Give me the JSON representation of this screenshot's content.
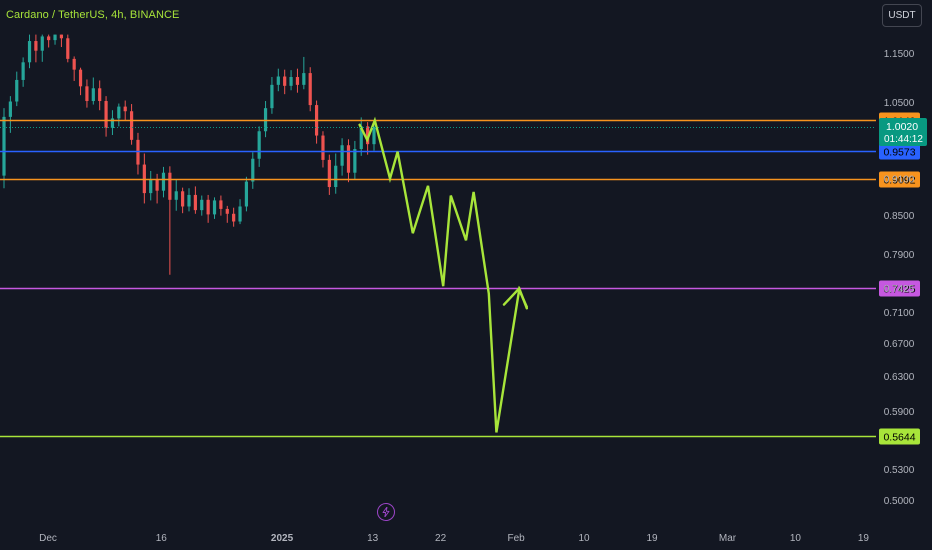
{
  "header": {
    "title": "Cardano / TetherUS, 4h, BINANCE",
    "currency": "USDT"
  },
  "chart_data": {
    "type": "line",
    "title": "Cardano / TetherUS, 4h, BINANCE",
    "symbol": "ADA/USDT",
    "interval": "4h",
    "exchange": "BINANCE",
    "ylim": [
      0.48,
      1.2
    ],
    "grid": false,
    "y_ticks": [
      "1.1500",
      "1.0500",
      "0.9100",
      "0.8500",
      "0.7900",
      "0.7425",
      "0.7100",
      "0.6700",
      "0.6300",
      "0.5900",
      "0.5300",
      "0.5000"
    ],
    "x_ticks": [
      "Dec",
      "16",
      "2025",
      "13",
      "22",
      "Feb",
      "10",
      "19",
      "Mar",
      "10",
      "19"
    ],
    "current_price": {
      "value": "1.0020",
      "countdown": "01:44:12",
      "color": "#089981"
    },
    "horizontal_levels": [
      {
        "value": 1.0149,
        "label": "1.0149",
        "color": "#f7931e"
      },
      {
        "value": 0.9573,
        "label": "0.9573",
        "color": "#2962ff"
      },
      {
        "value": 0.9092,
        "label": "0.9092",
        "color": "#f7931e"
      },
      {
        "value": 0.7425,
        "label": "0.7425",
        "color": "#c658e0"
      },
      {
        "value": 0.5644,
        "label": "0.5644",
        "color": "#a8e53a"
      }
    ],
    "projection": {
      "color": "#a8e53a",
      "path": [
        [
          "Jan 13",
          1.006
        ],
        [
          "Jan 14",
          0.978
        ],
        [
          "Jan 15",
          1.014
        ],
        [
          "Jan 17",
          0.91
        ],
        [
          "Jan 18",
          0.956
        ],
        [
          "Jan 20",
          0.822
        ],
        [
          "Jan 22",
          0.898
        ],
        [
          "Jan 24",
          0.745
        ],
        [
          "Jan 25",
          0.882
        ],
        [
          "Jan 27",
          0.811
        ],
        [
          "Jan 28",
          0.888
        ],
        [
          "Jan 30",
          0.735
        ],
        [
          "Jan 31",
          0.568
        ],
        [
          "Feb 3",
          0.74
        ],
        [
          "Feb 4",
          0.717
        ]
      ],
      "arrow_head": [
        [
          "Feb 1",
          0.72
        ],
        [
          "Feb 3",
          0.742
        ],
        [
          "Feb 4",
          0.715
        ]
      ]
    },
    "candles": [
      [
        0.915,
        1.021,
        0.894,
        1.038
      ],
      [
        1.021,
        1.051,
        0.991,
        1.062
      ],
      [
        1.051,
        1.095,
        1.042,
        1.112
      ],
      [
        1.095,
        1.131,
        1.081,
        1.141
      ],
      [
        1.131,
        1.176,
        1.119,
        1.19
      ],
      [
        1.176,
        1.155,
        1.131,
        1.19
      ],
      [
        1.155,
        1.186,
        1.132,
        1.19
      ],
      [
        1.186,
        1.178,
        1.162,
        1.19
      ],
      [
        1.178,
        1.19,
        1.168,
        1.19
      ],
      [
        1.19,
        1.182,
        1.163,
        1.19
      ],
      [
        1.182,
        1.138,
        1.131,
        1.19
      ],
      [
        1.138,
        1.116,
        1.093,
        1.143
      ],
      [
        1.116,
        1.082,
        1.064,
        1.12
      ],
      [
        1.082,
        1.052,
        1.039,
        1.096
      ],
      [
        1.052,
        1.078,
        1.045,
        1.1
      ],
      [
        1.078,
        1.052,
        1.034,
        1.094
      ],
      [
        1.052,
        1.0,
        0.984,
        1.062
      ],
      [
        1.0,
        1.018,
        0.987,
        1.034
      ],
      [
        1.018,
        1.041,
        1.003,
        1.047
      ],
      [
        1.041,
        1.032,
        1.014,
        1.053
      ],
      [
        1.032,
        0.978,
        0.969,
        1.046
      ],
      [
        0.978,
        0.934,
        0.917,
        0.991
      ],
      [
        0.934,
        0.886,
        0.869,
        0.953
      ],
      [
        0.886,
        0.908,
        0.874,
        0.923
      ],
      [
        0.908,
        0.89,
        0.869,
        0.918
      ],
      [
        0.89,
        0.92,
        0.879,
        0.93
      ],
      [
        0.92,
        0.875,
        0.761,
        0.931
      ],
      [
        0.875,
        0.889,
        0.857,
        0.908
      ],
      [
        0.889,
        0.864,
        0.853,
        0.895
      ],
      [
        0.864,
        0.883,
        0.856,
        0.894
      ],
      [
        0.883,
        0.858,
        0.852,
        0.897
      ],
      [
        0.858,
        0.875,
        0.849,
        0.882
      ],
      [
        0.875,
        0.851,
        0.838,
        0.883
      ],
      [
        0.851,
        0.874,
        0.844,
        0.879
      ],
      [
        0.874,
        0.86,
        0.849,
        0.882
      ],
      [
        0.86,
        0.852,
        0.838,
        0.865
      ],
      [
        0.852,
        0.84,
        0.832,
        0.862
      ],
      [
        0.84,
        0.864,
        0.836,
        0.876
      ],
      [
        0.864,
        0.905,
        0.856,
        0.913
      ],
      [
        0.905,
        0.944,
        0.893,
        0.955
      ],
      [
        0.944,
        0.994,
        0.93,
        1.003
      ],
      [
        0.994,
        1.038,
        0.983,
        1.052
      ],
      [
        1.038,
        1.085,
        1.027,
        1.101
      ],
      [
        1.085,
        1.102,
        1.072,
        1.118
      ],
      [
        1.102,
        1.083,
        1.066,
        1.116
      ],
      [
        1.083,
        1.101,
        1.074,
        1.115
      ],
      [
        1.101,
        1.085,
        1.069,
        1.118
      ],
      [
        1.085,
        1.109,
        1.076,
        1.142
      ],
      [
        1.109,
        1.044,
        1.032,
        1.121
      ],
      [
        1.044,
        0.986,
        0.971,
        1.053
      ],
      [
        0.986,
        0.942,
        0.929,
        0.994
      ],
      [
        0.942,
        0.896,
        0.883,
        0.951
      ],
      [
        0.896,
        0.932,
        0.885,
        0.953
      ],
      [
        0.932,
        0.968,
        0.915,
        0.981
      ],
      [
        0.968,
        0.92,
        0.904,
        0.979
      ],
      [
        0.92,
        0.961,
        0.908,
        0.976
      ],
      [
        0.961,
        1.003,
        0.949,
        1.02
      ],
      [
        1.003,
        0.97,
        0.951,
        1.011
      ],
      [
        0.97,
        1.002,
        0.958,
        1.012
      ]
    ]
  }
}
